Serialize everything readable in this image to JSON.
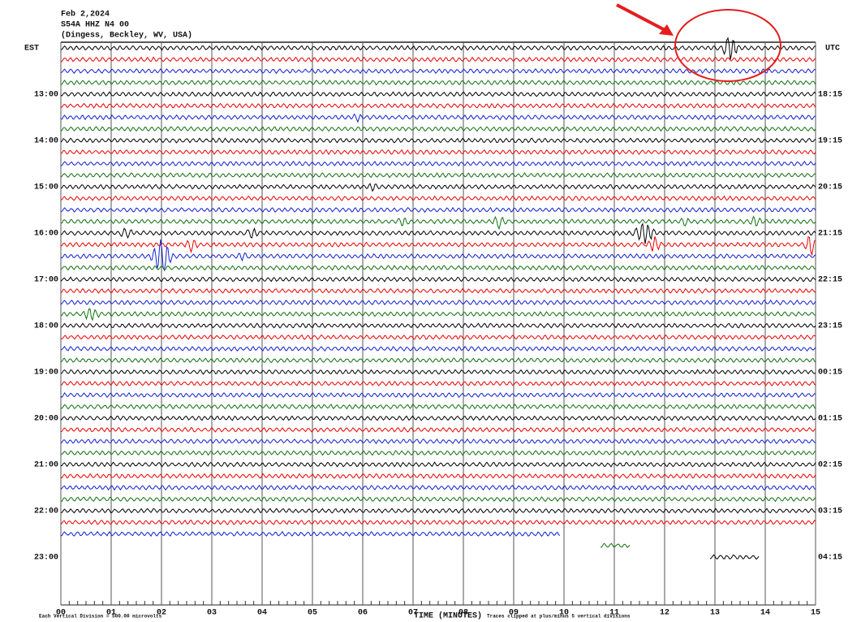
{
  "header": {
    "date": "Feb 2,2024",
    "station": "S54A HHZ N4 00",
    "location": "(Dingess, Beckley, WV, USA)"
  },
  "left_axis": {
    "title": "EST",
    "labels": [
      "13:00",
      "14:00",
      "15:00",
      "16:00",
      "17:00",
      "18:00",
      "19:00",
      "20:00",
      "21:00",
      "22:00",
      "23:00"
    ]
  },
  "right_axis": {
    "title": "UTC",
    "labels": [
      "18:15",
      "19:15",
      "20:15",
      "21:15",
      "22:15",
      "23:15",
      "00:15",
      "01:15",
      "02:15",
      "03:15",
      "04:15"
    ]
  },
  "x_axis": {
    "title": "TIME (MINUTES)",
    "labels": [
      "00",
      "01",
      "02",
      "03",
      "04",
      "05",
      "06",
      "07",
      "08",
      "09",
      "10",
      "11",
      "12",
      "13",
      "14",
      "15"
    ]
  },
  "footer": {
    "scale": "Each Vertical Division = 500.00 microvolts",
    "clip": "Traces clipped at plus/minus 5 vertical divisions"
  }
}
